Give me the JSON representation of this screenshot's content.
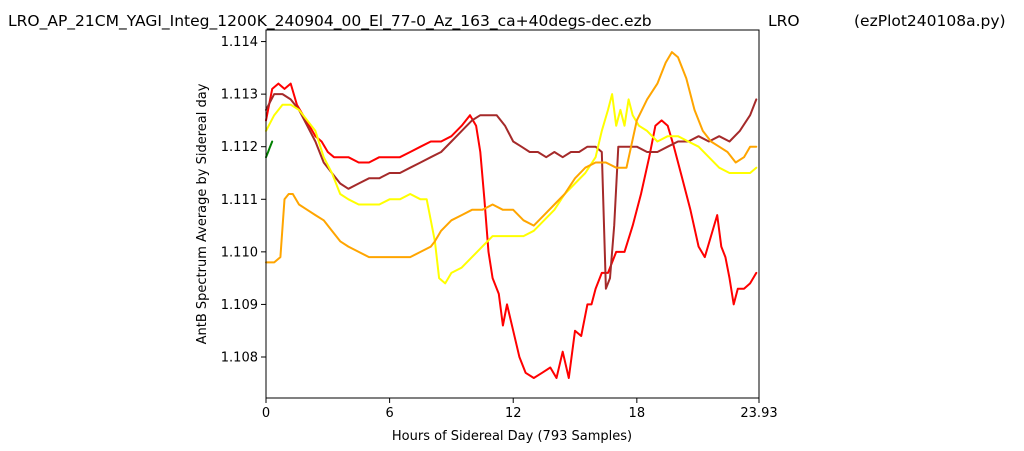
{
  "header": {
    "file": "LRO_AP_21CM_YAGI_Integ_1200K_240904_00_El_77-0_Az_163_ca+40degs-dec.ezb",
    "source": "LRO",
    "program": "(ezPlot240108a.py)"
  },
  "chart_data": {
    "type": "line",
    "title": "",
    "xlabel": "Hours of Sidereal Day  (793 Samples)",
    "ylabel": "AntB Spectrum Average by Sidereal day",
    "xlim": [
      0,
      23.93
    ],
    "ylim": [
      1.10722,
      1.11422
    ],
    "xticks": [
      0,
      6,
      12,
      18,
      23.93
    ],
    "xtick_labels": [
      "0",
      "6",
      "12",
      "18",
      "23.93"
    ],
    "yticks": [
      1.108,
      1.109,
      1.11,
      1.111,
      1.112,
      1.113,
      1.114
    ],
    "ytick_labels": [
      "1.108",
      "1.109",
      "1.110",
      "1.111",
      "1.112",
      "1.113",
      "1.114"
    ],
    "grid": false,
    "legend": "none",
    "series": [
      {
        "color": "#008000",
        "x": [
          0,
          0.1,
          0.2,
          0.3
        ],
        "y": [
          1.1118,
          1.1119,
          1.112,
          1.1121
        ]
      },
      {
        "color": "#ff0000",
        "x": [
          0,
          0.3,
          0.6,
          0.9,
          1.2,
          1.5,
          1.8,
          2.1,
          2.4,
          2.7,
          3.0,
          3.3,
          3.6,
          4.0,
          4.5,
          5.0,
          5.5,
          6.0,
          6.5,
          7.0,
          7.5,
          8.0,
          8.5,
          9.0,
          9.5,
          9.9,
          10.2,
          10.4,
          10.6,
          10.8,
          11.0,
          11.3,
          11.5,
          11.7,
          12.0,
          12.3,
          12.6,
          13.0,
          13.4,
          13.8,
          14.1,
          14.4,
          14.7,
          15.0,
          15.3,
          15.6,
          15.8,
          16.0,
          16.3,
          16.6,
          17.0,
          17.4,
          17.8,
          18.2,
          18.6,
          18.9,
          19.2,
          19.5,
          19.8,
          20.2,
          20.6,
          21.0,
          21.3,
          21.6,
          21.9,
          22.1,
          22.3,
          22.5,
          22.7,
          22.9,
          23.2,
          23.5,
          23.8
        ],
        "y": [
          1.1125,
          1.1131,
          1.1132,
          1.1131,
          1.1132,
          1.1128,
          1.1126,
          1.1124,
          1.1122,
          1.1121,
          1.1119,
          1.1118,
          1.1118,
          1.1118,
          1.1117,
          1.1117,
          1.1118,
          1.1118,
          1.1118,
          1.1119,
          1.112,
          1.1121,
          1.1121,
          1.1122,
          1.1124,
          1.1126,
          1.1124,
          1.1119,
          1.111,
          1.11,
          1.1095,
          1.1092,
          1.1086,
          1.109,
          1.1085,
          1.108,
          1.1077,
          1.1076,
          1.1077,
          1.1078,
          1.1076,
          1.1081,
          1.1076,
          1.1085,
          1.1084,
          1.109,
          1.109,
          1.1093,
          1.1096,
          1.1096,
          1.11,
          1.11,
          1.1105,
          1.1111,
          1.1118,
          1.1124,
          1.1125,
          1.1124,
          1.112,
          1.1114,
          1.1108,
          1.1101,
          1.1099,
          1.1103,
          1.1107,
          1.1101,
          1.1099,
          1.1095,
          1.109,
          1.1093,
          1.1093,
          1.1094,
          1.1096
        ]
      },
      {
        "color": "#a52a2a",
        "x": [
          0,
          0.4,
          0.8,
          1.2,
          1.6,
          2.0,
          2.4,
          2.8,
          3.2,
          3.6,
          4.0,
          4.5,
          5.0,
          5.5,
          6.0,
          6.5,
          7.0,
          7.5,
          8.0,
          8.5,
          9.0,
          9.5,
          10.0,
          10.4,
          10.8,
          11.2,
          11.6,
          12.0,
          12.4,
          12.8,
          13.2,
          13.6,
          14.0,
          14.4,
          14.8,
          15.2,
          15.6,
          16.0,
          16.3,
          16.5,
          16.7,
          16.9,
          17.1,
          17.5,
          18.0,
          18.5,
          19.0,
          19.5,
          20.0,
          20.5,
          21.0,
          21.5,
          22.0,
          22.5,
          23.0,
          23.5,
          23.8
        ],
        "y": [
          1.1127,
          1.113,
          1.113,
          1.1129,
          1.1127,
          1.1124,
          1.1121,
          1.1117,
          1.1115,
          1.1113,
          1.1112,
          1.1113,
          1.1114,
          1.1114,
          1.1115,
          1.1115,
          1.1116,
          1.1117,
          1.1118,
          1.1119,
          1.1121,
          1.1123,
          1.1125,
          1.1126,
          1.1126,
          1.1126,
          1.1124,
          1.1121,
          1.112,
          1.1119,
          1.1119,
          1.1118,
          1.1119,
          1.1118,
          1.1119,
          1.1119,
          1.112,
          1.112,
          1.1119,
          1.1093,
          1.1095,
          1.1105,
          1.112,
          1.112,
          1.112,
          1.1119,
          1.1119,
          1.112,
          1.1121,
          1.1121,
          1.1122,
          1.1121,
          1.1122,
          1.1121,
          1.1123,
          1.1126,
          1.1129
        ]
      },
      {
        "color": "#ffff00",
        "x": [
          0,
          0.4,
          0.8,
          1.2,
          1.6,
          2.0,
          2.4,
          2.8,
          3.2,
          3.6,
          4.0,
          4.5,
          5.0,
          5.5,
          6.0,
          6.5,
          7.0,
          7.5,
          7.8,
          8.0,
          8.2,
          8.4,
          8.7,
          9.0,
          9.5,
          10.0,
          10.5,
          11.0,
          11.5,
          12.0,
          12.5,
          13.0,
          13.5,
          14.0,
          14.5,
          15.0,
          15.5,
          16.0,
          16.3,
          16.6,
          16.8,
          17.0,
          17.2,
          17.4,
          17.6,
          17.8,
          18.1,
          18.5,
          19.0,
          19.5,
          20.0,
          20.5,
          21.0,
          21.5,
          22.0,
          22.5,
          23.0,
          23.5,
          23.8
        ],
        "y": [
          1.1123,
          1.1126,
          1.1128,
          1.1128,
          1.1127,
          1.1125,
          1.1123,
          1.1118,
          1.1115,
          1.1111,
          1.111,
          1.1109,
          1.1109,
          1.1109,
          1.111,
          1.111,
          1.1111,
          1.111,
          1.111,
          1.1106,
          1.1102,
          1.1095,
          1.1094,
          1.1096,
          1.1097,
          1.1099,
          1.1101,
          1.1103,
          1.1103,
          1.1103,
          1.1103,
          1.1104,
          1.1106,
          1.1108,
          1.1111,
          1.1113,
          1.1115,
          1.1118,
          1.1123,
          1.1127,
          1.113,
          1.1124,
          1.1127,
          1.1124,
          1.1129,
          1.1126,
          1.1124,
          1.1123,
          1.1121,
          1.1122,
          1.1122,
          1.1121,
          1.112,
          1.1118,
          1.1116,
          1.1115,
          1.1115,
          1.1115,
          1.1116
        ]
      },
      {
        "color": "#ffa500",
        "x": [
          0,
          0.4,
          0.7,
          0.9,
          1.1,
          1.3,
          1.6,
          2.0,
          2.4,
          2.8,
          3.2,
          3.6,
          4.0,
          4.5,
          5.0,
          5.5,
          6.0,
          6.5,
          7.0,
          7.5,
          8.0,
          8.2,
          8.5,
          9.0,
          9.5,
          10.0,
          10.5,
          11.0,
          11.5,
          12.0,
          12.5,
          13.0,
          13.5,
          14.0,
          14.5,
          15.0,
          15.5,
          16.0,
          16.5,
          17.0,
          17.5,
          18.0,
          18.5,
          19.0,
          19.4,
          19.7,
          20.0,
          20.4,
          20.8,
          21.2,
          21.6,
          22.0,
          22.4,
          22.8,
          23.2,
          23.5,
          23.8
        ],
        "y": [
          1.1098,
          1.1098,
          1.1099,
          1.111,
          1.1111,
          1.1111,
          1.1109,
          1.1108,
          1.1107,
          1.1106,
          1.1104,
          1.1102,
          1.1101,
          1.11,
          1.1099,
          1.1099,
          1.1099,
          1.1099,
          1.1099,
          1.11,
          1.1101,
          1.1102,
          1.1104,
          1.1106,
          1.1107,
          1.1108,
          1.1108,
          1.1109,
          1.1108,
          1.1108,
          1.1106,
          1.1105,
          1.1107,
          1.1109,
          1.1111,
          1.1114,
          1.1116,
          1.1117,
          1.1117,
          1.1116,
          1.1116,
          1.1125,
          1.1129,
          1.1132,
          1.1136,
          1.1138,
          1.1137,
          1.1133,
          1.1127,
          1.1123,
          1.1121,
          1.112,
          1.1119,
          1.1117,
          1.1118,
          1.112,
          1.112
        ]
      }
    ]
  }
}
